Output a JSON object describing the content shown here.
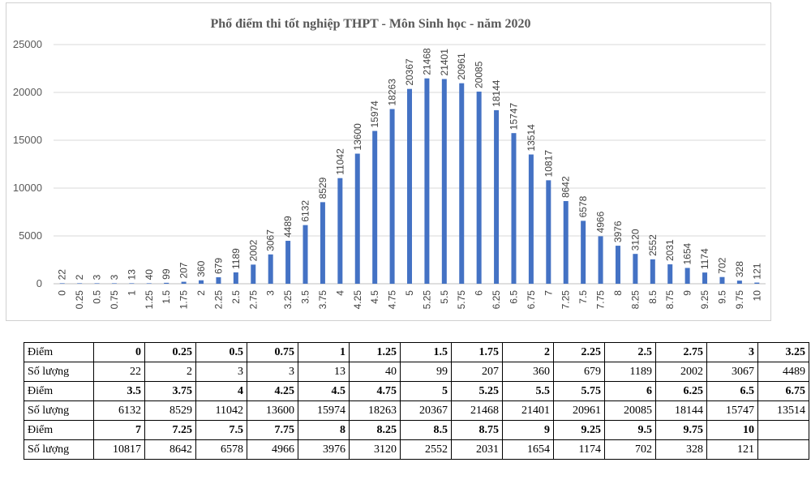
{
  "chart_data": {
    "type": "bar",
    "title": "Phổ điểm thi tốt nghiệp THPT - Môn Sinh học - năm 2020",
    "xlabel": "",
    "ylabel": "",
    "ylim": [
      0,
      25000
    ],
    "yticks": [
      "0",
      "5000",
      "10000",
      "15000",
      "20000",
      "25000"
    ],
    "grid": true,
    "bar_color": "#4472C4",
    "categories": [
      "0",
      "0.25",
      "0.5",
      "0.75",
      "1",
      "1.25",
      "1.5",
      "1.75",
      "2",
      "2.25",
      "2.5",
      "2.75",
      "3",
      "3.25",
      "3.5",
      "3.75",
      "4",
      "4.25",
      "4.5",
      "4.75",
      "5",
      "5.25",
      "5.5",
      "5.75",
      "6",
      "6.25",
      "6.5",
      "6.75",
      "7",
      "7.25",
      "7.5",
      "7.75",
      "8",
      "8.25",
      "8.5",
      "8.75",
      "9",
      "9.25",
      "9.5",
      "9.75",
      "10"
    ],
    "values": [
      22,
      2,
      3,
      3,
      13,
      40,
      99,
      207,
      360,
      679,
      1189,
      2002,
      3067,
      4489,
      6132,
      8529,
      11042,
      13600,
      15974,
      18263,
      20367,
      21468,
      21401,
      20961,
      20085,
      18144,
      15747,
      13514,
      10817,
      8642,
      6578,
      4966,
      3976,
      3120,
      2552,
      2031,
      1654,
      1174,
      702,
      328,
      121
    ]
  },
  "table": {
    "score_label": "Điểm",
    "count_label": "Số lượng",
    "blocks": [
      {
        "scores": [
          "0",
          "0.25",
          "0.5",
          "0.75",
          "1",
          "1.25",
          "1.5",
          "1.75",
          "2",
          "2.25",
          "2.5",
          "2.75",
          "3",
          "3.25"
        ],
        "counts": [
          "22",
          "2",
          "3",
          "3",
          "13",
          "40",
          "99",
          "207",
          "360",
          "679",
          "1189",
          "2002",
          "3067",
          "4489"
        ]
      },
      {
        "scores": [
          "3.5",
          "3.75",
          "4",
          "4.25",
          "4.5",
          "4.75",
          "5",
          "5.25",
          "5.5",
          "5.75",
          "6",
          "6.25",
          "6.5",
          "6.75"
        ],
        "counts": [
          "6132",
          "8529",
          "11042",
          "13600",
          "15974",
          "18263",
          "20367",
          "21468",
          "21401",
          "20961",
          "20085",
          "18144",
          "15747",
          "13514"
        ]
      },
      {
        "scores": [
          "7",
          "7.25",
          "7.5",
          "7.75",
          "8",
          "8.25",
          "8.5",
          "8.75",
          "9",
          "9.25",
          "9.5",
          "9.75",
          "10",
          ""
        ],
        "counts": [
          "10817",
          "8642",
          "6578",
          "4966",
          "3976",
          "3120",
          "2552",
          "2031",
          "1654",
          "1174",
          "702",
          "328",
          "121",
          ""
        ]
      }
    ]
  }
}
